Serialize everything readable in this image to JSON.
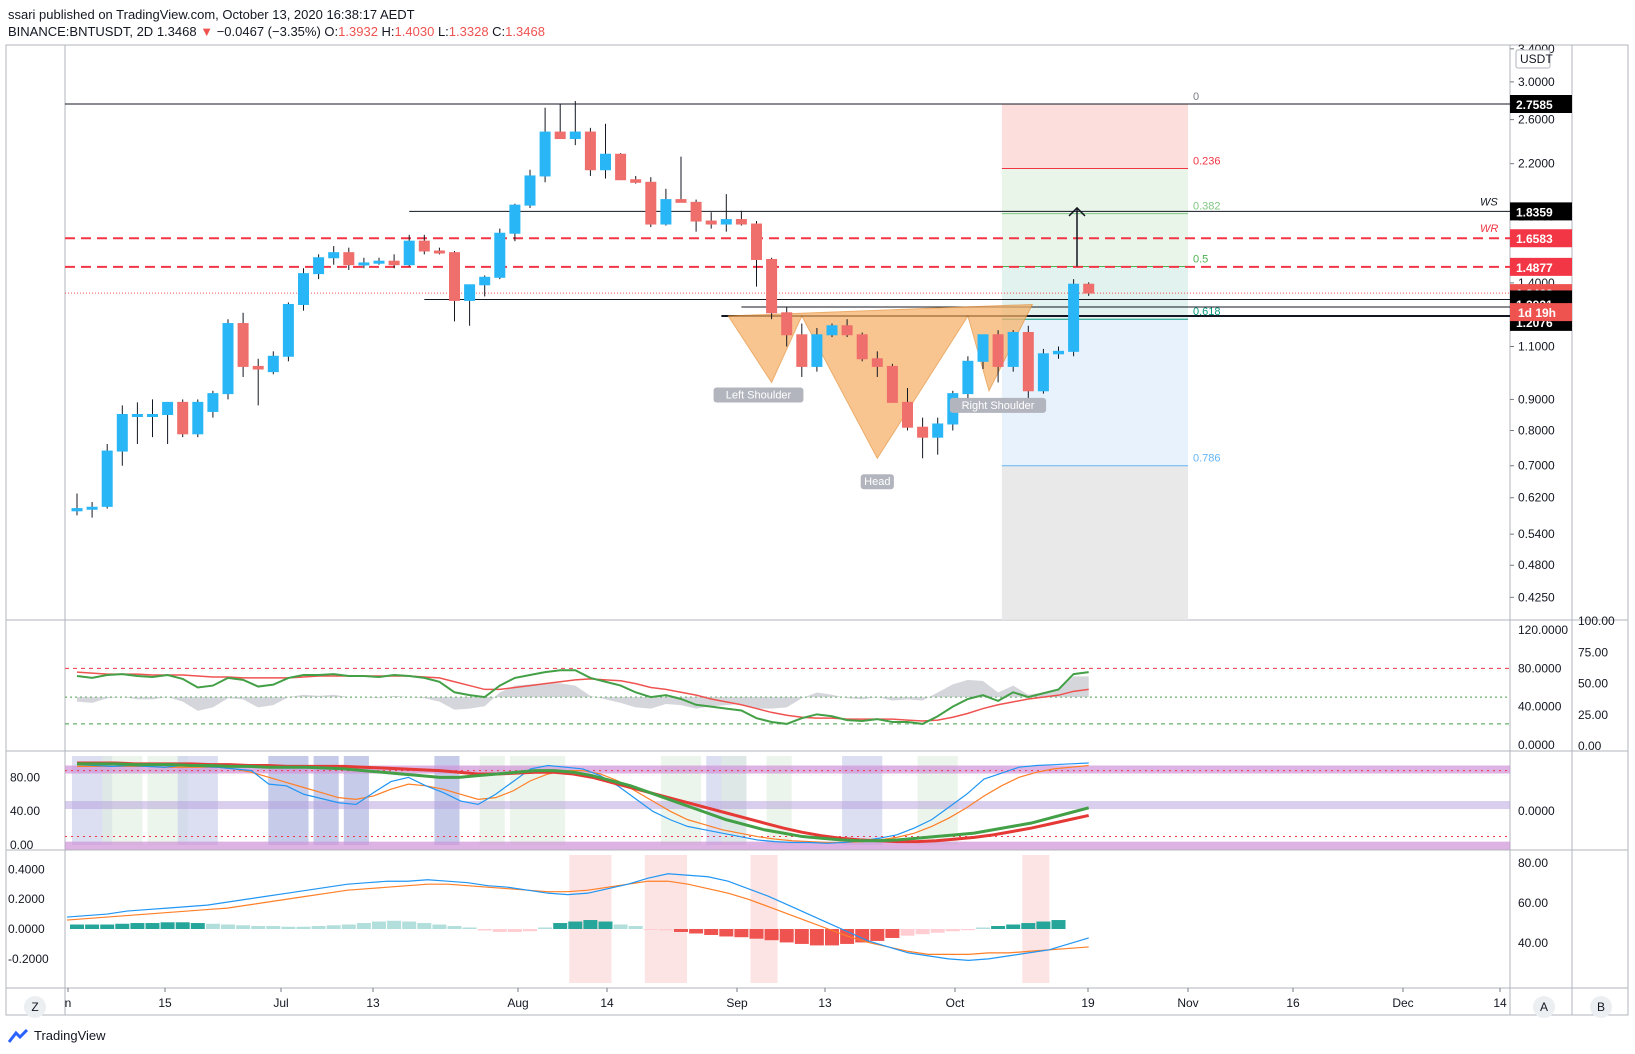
{
  "header": {
    "published": "ssari published on TradingView.com, October 13, 2020 16:38:17 AEDT",
    "symbol": "BINANCE:BNTUSDT, 2D",
    "last": "1.3468",
    "change": "−0.0467 (−3.35%)",
    "o_label": "O:",
    "o": "1.3932",
    "h_label": "H:",
    "h": "1.4030",
    "l_label": "L:",
    "l": "1.3328",
    "c_label": "C:",
    "c": "1.3468"
  },
  "footer": {
    "brand": "TradingView"
  },
  "corner_buttons": {
    "left": "Z",
    "mid": "A",
    "right": "B"
  },
  "colors": {
    "up": "#29b6f6",
    "down": "#ef6f6c",
    "grid": "#e0e3eb",
    "red_dashed": "#f23645",
    "green_rsi": "#43a047",
    "red_rsi": "#ef5350",
    "macd": "#2196f3",
    "signal": "#ff7f27",
    "pattern_fill": "#f6b26b",
    "fib_red": "#fbd9d6",
    "fib_green": "#e6f3e5",
    "fib_teal": "#dcf0ec",
    "fib_blue": "#e4f0fb",
    "fib_grey": "#e5e5e5"
  },
  "chart_data": {
    "type": "candlestick",
    "title": "BINANCE:BNTUSDT, 2D",
    "price_scale": "log",
    "ylim": [
      0.39,
      3.45
    ],
    "unit_label": "USDT",
    "y_ticks": [
      "3.4000",
      "3.0000",
      "2.6000",
      "2.2000",
      "1.8000",
      "1.4000",
      "1.1000",
      "0.9000",
      "0.8000",
      "0.7000",
      "0.6200",
      "0.5400",
      "0.4800",
      "0.4250"
    ],
    "x_labels": [
      "n",
      "15",
      "Jul",
      "13",
      "Aug",
      "14",
      "Sep",
      "13",
      "Oct",
      "19",
      "Nov",
      "16",
      "Dec",
      "14"
    ],
    "candles": [
      {
        "o": 0.59,
        "h": 0.63,
        "l": 0.58,
        "c": 0.595
      },
      {
        "o": 0.595,
        "h": 0.61,
        "l": 0.575,
        "c": 0.598
      },
      {
        "o": 0.6,
        "h": 0.76,
        "l": 0.595,
        "c": 0.74
      },
      {
        "o": 0.74,
        "h": 0.88,
        "l": 0.7,
        "c": 0.85
      },
      {
        "o": 0.85,
        "h": 0.89,
        "l": 0.76,
        "c": 0.85
      },
      {
        "o": 0.85,
        "h": 0.9,
        "l": 0.78,
        "c": 0.85
      },
      {
        "o": 0.85,
        "h": 0.89,
        "l": 0.76,
        "c": 0.89
      },
      {
        "o": 0.89,
        "h": 0.9,
        "l": 0.78,
        "c": 0.79
      },
      {
        "o": 0.79,
        "h": 0.9,
        "l": 0.78,
        "c": 0.89
      },
      {
        "o": 0.86,
        "h": 0.93,
        "l": 0.84,
        "c": 0.92
      },
      {
        "o": 0.92,
        "h": 1.22,
        "l": 0.9,
        "c": 1.2
      },
      {
        "o": 1.2,
        "h": 1.25,
        "l": 0.98,
        "c": 1.02
      },
      {
        "o": 1.02,
        "h": 1.05,
        "l": 0.88,
        "c": 1.01
      },
      {
        "o": 1.0,
        "h": 1.08,
        "l": 0.99,
        "c": 1.06
      },
      {
        "o": 1.06,
        "h": 1.3,
        "l": 1.04,
        "c": 1.29
      },
      {
        "o": 1.29,
        "h": 1.48,
        "l": 1.26,
        "c": 1.45
      },
      {
        "o": 1.45,
        "h": 1.56,
        "l": 1.42,
        "c": 1.54
      },
      {
        "o": 1.54,
        "h": 1.61,
        "l": 1.5,
        "c": 1.57
      },
      {
        "o": 1.57,
        "h": 1.6,
        "l": 1.47,
        "c": 1.5
      },
      {
        "o": 1.5,
        "h": 1.54,
        "l": 1.48,
        "c": 1.51
      },
      {
        "o": 1.51,
        "h": 1.54,
        "l": 1.5,
        "c": 1.52
      },
      {
        "o": 1.52,
        "h": 1.56,
        "l": 1.48,
        "c": 1.5
      },
      {
        "o": 1.5,
        "h": 1.68,
        "l": 1.49,
        "c": 1.64
      },
      {
        "o": 1.64,
        "h": 1.68,
        "l": 1.56,
        "c": 1.58
      },
      {
        "o": 1.58,
        "h": 1.6,
        "l": 1.56,
        "c": 1.57
      },
      {
        "o": 1.57,
        "h": 1.58,
        "l": 1.21,
        "c": 1.31
      },
      {
        "o": 1.31,
        "h": 1.38,
        "l": 1.19,
        "c": 1.39
      },
      {
        "o": 1.39,
        "h": 1.44,
        "l": 1.33,
        "c": 1.43
      },
      {
        "o": 1.43,
        "h": 1.72,
        "l": 1.42,
        "c": 1.69
      },
      {
        "o": 1.69,
        "h": 1.89,
        "l": 1.64,
        "c": 1.88
      },
      {
        "o": 1.88,
        "h": 2.15,
        "l": 1.86,
        "c": 2.1
      },
      {
        "o": 2.1,
        "h": 2.72,
        "l": 2.05,
        "c": 2.48
      },
      {
        "o": 2.48,
        "h": 2.76,
        "l": 2.42,
        "c": 2.42
      },
      {
        "o": 2.42,
        "h": 2.79,
        "l": 2.36,
        "c": 2.48
      },
      {
        "o": 2.48,
        "h": 2.52,
        "l": 2.1,
        "c": 2.15
      },
      {
        "o": 2.15,
        "h": 2.56,
        "l": 2.08,
        "c": 2.28
      },
      {
        "o": 2.28,
        "h": 2.29,
        "l": 2.07,
        "c": 2.07
      },
      {
        "o": 2.07,
        "h": 2.1,
        "l": 2.04,
        "c": 2.05
      },
      {
        "o": 2.05,
        "h": 2.09,
        "l": 1.73,
        "c": 1.75
      },
      {
        "o": 1.75,
        "h": 2.0,
        "l": 1.74,
        "c": 1.92
      },
      {
        "o": 1.92,
        "h": 2.26,
        "l": 1.9,
        "c": 1.9
      },
      {
        "o": 1.9,
        "h": 1.92,
        "l": 1.7,
        "c": 1.77
      },
      {
        "o": 1.77,
        "h": 1.83,
        "l": 1.72,
        "c": 1.75
      },
      {
        "o": 1.75,
        "h": 1.96,
        "l": 1.7,
        "c": 1.78
      },
      {
        "o": 1.78,
        "h": 1.84,
        "l": 1.74,
        "c": 1.75
      },
      {
        "o": 1.75,
        "h": 1.77,
        "l": 1.38,
        "c": 1.53
      },
      {
        "o": 1.53,
        "h": 1.54,
        "l": 1.22,
        "c": 1.25
      },
      {
        "o": 1.25,
        "h": 1.28,
        "l": 1.1,
        "c": 1.15
      },
      {
        "o": 1.15,
        "h": 1.2,
        "l": 0.98,
        "c": 1.02
      },
      {
        "o": 1.02,
        "h": 1.18,
        "l": 1.0,
        "c": 1.15
      },
      {
        "o": 1.15,
        "h": 1.2,
        "l": 1.14,
        "c": 1.19
      },
      {
        "o": 1.19,
        "h": 1.22,
        "l": 1.14,
        "c": 1.15
      },
      {
        "o": 1.15,
        "h": 1.16,
        "l": 1.04,
        "c": 1.05
      },
      {
        "o": 1.05,
        "h": 1.08,
        "l": 0.98,
        "c": 1.02
      },
      {
        "o": 1.02,
        "h": 1.03,
        "l": 0.89,
        "c": 0.89
      },
      {
        "o": 0.89,
        "h": 0.94,
        "l": 0.8,
        "c": 0.81
      },
      {
        "o": 0.81,
        "h": 0.84,
        "l": 0.72,
        "c": 0.78
      },
      {
        "o": 0.78,
        "h": 0.84,
        "l": 0.73,
        "c": 0.82
      },
      {
        "o": 0.82,
        "h": 0.93,
        "l": 0.8,
        "c": 0.92
      },
      {
        "o": 0.92,
        "h": 1.06,
        "l": 0.9,
        "c": 1.04
      },
      {
        "o": 1.04,
        "h": 1.15,
        "l": 1.01,
        "c": 1.15
      },
      {
        "o": 1.15,
        "h": 1.17,
        "l": 0.96,
        "c": 1.02
      },
      {
        "o": 1.02,
        "h": 1.17,
        "l": 1.0,
        "c": 1.16
      },
      {
        "o": 1.16,
        "h": 1.19,
        "l": 0.9,
        "c": 0.93
      },
      {
        "o": 0.93,
        "h": 1.09,
        "l": 0.92,
        "c": 1.07
      },
      {
        "o": 1.07,
        "h": 1.1,
        "l": 1.05,
        "c": 1.08
      },
      {
        "o": 1.08,
        "h": 1.42,
        "l": 1.06,
        "c": 1.393
      },
      {
        "o": 1.393,
        "h": 1.403,
        "l": 1.333,
        "c": 1.347
      }
    ],
    "levels": {
      "ws": {
        "label": "WS",
        "price": 1.8359
      },
      "wr": {
        "label": "WR",
        "price": 1.6583
      },
      "red_dashed_2": 1.4877,
      "current": 1.3468,
      "countdown": "1d 19h",
      "neckline": 1.3148,
      "upper_neck": 1.2921,
      "lower_line": 1.2076,
      "top": 2.7585
    },
    "price_tags": [
      {
        "price": 2.7585,
        "label": "2.7585",
        "bg": "#000000"
      },
      {
        "price": 1.8359,
        "label": "1.8359",
        "bg": "#000000"
      },
      {
        "price": 1.6583,
        "label": "1.6583",
        "bg": "#f23645"
      },
      {
        "price": 1.4877,
        "label": "1.4877",
        "bg": "#f23645"
      },
      {
        "price": 1.3468,
        "label": "1.3468",
        "bg": "#ef5350"
      },
      {
        "price": 1.3148,
        "label": "1.3148",
        "bg": "#000000"
      },
      {
        "price": 1.2921,
        "label": "1.2921",
        "bg": "#000000"
      },
      {
        "price": 1.2076,
        "label": "1.2076",
        "bg": "#000000"
      }
    ],
    "fib": {
      "levels": [
        {
          "ratio": "0",
          "price": 2.7585,
          "color": "#787b86"
        },
        {
          "ratio": "0.236",
          "price": 2.16,
          "color": "#f23645"
        },
        {
          "ratio": "0.382",
          "price": 1.82,
          "color": "#81c784"
        },
        {
          "ratio": "0.5",
          "price": 1.49,
          "color": "#4caf50"
        },
        {
          "ratio": "0.618",
          "price": 1.22,
          "color": "#089981"
        },
        {
          "ratio": "0.786",
          "price": 0.7,
          "color": "#64b5f6"
        }
      ]
    },
    "pattern_labels": [
      "Left Shoulder",
      "Head",
      "Right Shoulder"
    ],
    "rsi_panel": {
      "ticks_right": [
        "120.0000",
        "80.0000",
        "40.0000",
        "0.0000"
      ],
      "ticks_far": [
        "100.00",
        "75.00",
        "50.00",
        "25.00",
        "0.00"
      ],
      "green": [
        72,
        70,
        73,
        74,
        72,
        71,
        73,
        69,
        60,
        62,
        70,
        68,
        61,
        63,
        70,
        73,
        73,
        74,
        72,
        72,
        71,
        73,
        72,
        70,
        66,
        55,
        52,
        50,
        62,
        70,
        73,
        76,
        78,
        78,
        70,
        66,
        62,
        55,
        50,
        52,
        48,
        42,
        40,
        38,
        36,
        28,
        24,
        22,
        28,
        32,
        30,
        26,
        25,
        27,
        24,
        24,
        22,
        30,
        40,
        48,
        52,
        46,
        55,
        50,
        54,
        58,
        74,
        76
      ],
      "red": [
        76,
        75,
        74,
        74,
        74,
        73,
        73,
        73,
        72,
        71,
        71,
        70,
        70,
        70,
        70,
        71,
        72,
        72,
        72,
        72,
        72,
        72,
        72,
        71,
        70,
        66,
        62,
        58,
        58,
        60,
        62,
        64,
        66,
        68,
        69,
        68,
        67,
        64,
        60,
        58,
        55,
        52,
        48,
        45,
        42,
        38,
        34,
        31,
        29,
        28,
        28,
        27,
        27,
        27,
        27,
        26,
        25,
        26,
        29,
        33,
        38,
        42,
        45,
        48,
        50,
        52,
        56,
        58
      ]
    },
    "stoch_panel": {
      "ticks_left": [
        "80.00",
        "40.00",
        "0.00"
      ],
      "ticks_right": [
        "0.0000"
      ]
    },
    "macd_panel": {
      "ticks_left": [
        "0.4000",
        "0.2000",
        "0.0000",
        "-0.2000"
      ],
      "ticks_right": [
        "80.00",
        "60.00",
        "40.00"
      ]
    }
  }
}
